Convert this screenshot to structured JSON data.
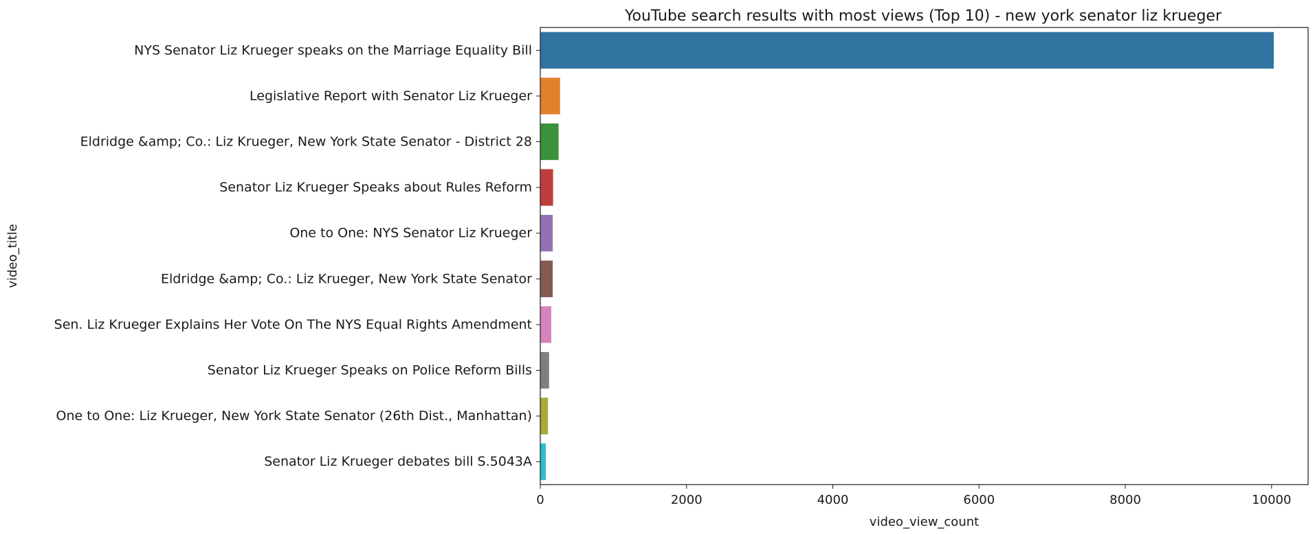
{
  "chart_data": {
    "type": "bar",
    "orientation": "horizontal",
    "title": "YouTube search results with most views (Top 10) - new york senator liz krueger",
    "xlabel": "video_view_count",
    "ylabel": "video_title",
    "xlim": [
      0,
      10500
    ],
    "xticks": [
      0,
      2000,
      4000,
      6000,
      8000,
      10000
    ],
    "xtick_labels": [
      "0",
      "2000",
      "4000",
      "6000",
      "8000",
      "10000"
    ],
    "grid": false,
    "categories": [
      "NYS Senator Liz Krueger speaks on the Marriage Equality Bill",
      "Legislative Report with Senator Liz Krueger",
      "Eldridge &amp; Co.: Liz Krueger, New York State Senator - District 28",
      "Senator Liz Krueger Speaks about Rules Reform",
      "One to One:  NYS Senator Liz Krueger",
      "Eldridge &amp; Co.: Liz Krueger, New York State Senator",
      "Sen. Liz Krueger Explains Her Vote On The NYS Equal Rights Amendment",
      "Senator Liz Krueger Speaks on Police Reform Bills",
      "One to One: Liz Krueger, New York State Senator (26th Dist., Manhattan)",
      "Senator Liz Krueger debates bill S.5043A"
    ],
    "values": [
      10030,
      270,
      250,
      175,
      170,
      170,
      150,
      120,
      105,
      75
    ],
    "colors": [
      "#3274a1",
      "#e1812c",
      "#3a923a",
      "#c03d3e",
      "#9372b2",
      "#845b53",
      "#d684bd",
      "#7f7f7f",
      "#a9aa35",
      "#2ebdcd"
    ]
  }
}
